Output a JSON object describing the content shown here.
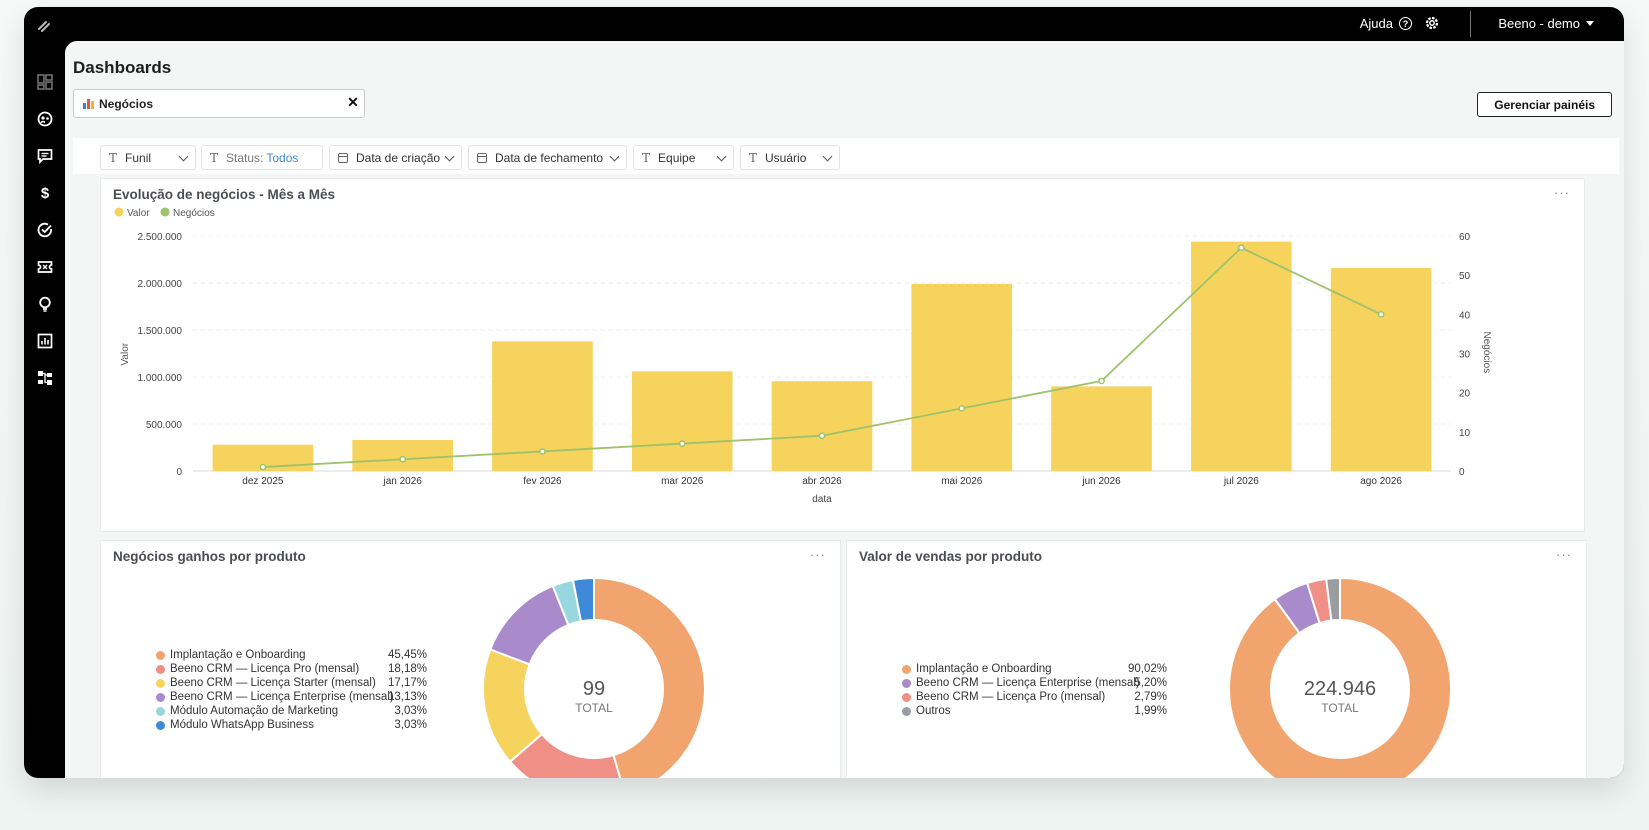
{
  "topbar": {
    "help_label": "Ajuda",
    "help_icon": "?",
    "account_label": "Beeno - demo"
  },
  "sidebar": {
    "icons": [
      "dashboard-icon",
      "contacts-icon",
      "chat-icon",
      "dollar-icon",
      "check-circle-icon",
      "ticket-icon",
      "lightbulb-icon",
      "report-chart-icon",
      "workflow-icon"
    ]
  },
  "page": {
    "title": "Dashboards"
  },
  "tab": {
    "label": "Negócios",
    "close": "✕"
  },
  "manage_button": "Gerenciar painéis",
  "filters": [
    {
      "label": "Funil",
      "kind": "text"
    },
    {
      "label": "Status:",
      "value": "Todos",
      "kind": "text"
    },
    {
      "label": "Data de criação",
      "kind": "date"
    },
    {
      "label": "Data de fechamento",
      "kind": "date"
    },
    {
      "label": "Equipe",
      "kind": "text"
    },
    {
      "label": "Usuário",
      "kind": "text"
    }
  ],
  "cards": {
    "evolution": {
      "title": "Evolução de negócios - Mês a Mês",
      "menu": "···"
    },
    "won_by_product": {
      "title": "Negócios ganhos por produto",
      "menu": "···",
      "total": "99",
      "total_label": "TOTAL"
    },
    "sales_by_product": {
      "title": "Valor de vendas por produto",
      "menu": "···",
      "total": "224.946",
      "total_label": "TOTAL"
    }
  },
  "colors": {
    "bar": "#f6d35d",
    "line": "#9ec26a",
    "accent_link": "#3e8ad8"
  },
  "chart_data": [
    {
      "type": "bar",
      "title": "Evolução de negócios - Mês a Mês",
      "legend": [
        "Valor",
        "Negócios"
      ],
      "legend_placement": "top-left",
      "xlabel": "data",
      "ylabel": "Valor",
      "y2label": "Negócios",
      "categories": [
        "dez 2025",
        "jan 2026",
        "fev 2026",
        "mar 2026",
        "abr 2026",
        "mai 2026",
        "jun 2026",
        "jul 2026",
        "ago 2026"
      ],
      "series": [
        {
          "name": "Valor",
          "type": "bar",
          "axis": "left",
          "color": "#f6d35d",
          "values": [
            280000,
            330000,
            1380000,
            1060000,
            955000,
            1990000,
            900000,
            2440000,
            2160000
          ]
        },
        {
          "name": "Negócios",
          "type": "line",
          "axis": "right",
          "color": "#9ec26a",
          "values": [
            1,
            3,
            5,
            7,
            9,
            16,
            23,
            57,
            40
          ]
        }
      ],
      "ylim": [
        0,
        2500000
      ],
      "y_ticks": [
        "0",
        "500.000",
        "1.000.000",
        "1.500.000",
        "2.000.000",
        "2.500.000"
      ],
      "y2lim": [
        0,
        60
      ],
      "y2_ticks": [
        "0",
        "10",
        "20",
        "30",
        "40",
        "50",
        "60"
      ],
      "grid": true
    },
    {
      "type": "pie",
      "title": "Negócios ganhos por produto",
      "donut": true,
      "total": "99",
      "slices": [
        {
          "label": "Implantação e Onboarding",
          "value": 45.45,
          "pct": "45,45%",
          "color": "#f2a46e"
        },
        {
          "label": "Beeno CRM — Licença Pro (mensal)",
          "value": 18.18,
          "pct": "18,18%",
          "color": "#f08f86"
        },
        {
          "label": "Beeno CRM — Licença Starter (mensal)",
          "value": 17.17,
          "pct": "17,17%",
          "color": "#f6d35d"
        },
        {
          "label": "Beeno CRM — Licença Enterprise (mensal)",
          "value": 13.13,
          "pct": "13,13%",
          "color": "#a98acb"
        },
        {
          "label": "Módulo Automação de Marketing",
          "value": 3.03,
          "pct": "3,03%",
          "color": "#98d6e0"
        },
        {
          "label": "Módulo WhatsApp Business",
          "value": 3.03,
          "pct": "3,03%",
          "color": "#3e8ad8"
        }
      ]
    },
    {
      "type": "pie",
      "title": "Valor de vendas por produto",
      "donut": true,
      "total": "224.946",
      "slices": [
        {
          "label": "Implantação e Onboarding",
          "value": 90.02,
          "pct": "90,02%",
          "color": "#f2a46e"
        },
        {
          "label": "Beeno CRM — Licença Enterprise (mensal)",
          "value": 5.2,
          "pct": "5,20%",
          "color": "#a98acb"
        },
        {
          "label": "Beeno CRM — Licença Pro (mensal)",
          "value": 2.79,
          "pct": "2,79%",
          "color": "#f08f86"
        },
        {
          "label": "Outros",
          "value": 1.99,
          "pct": "1,99%",
          "color": "#999da2"
        }
      ]
    }
  ]
}
